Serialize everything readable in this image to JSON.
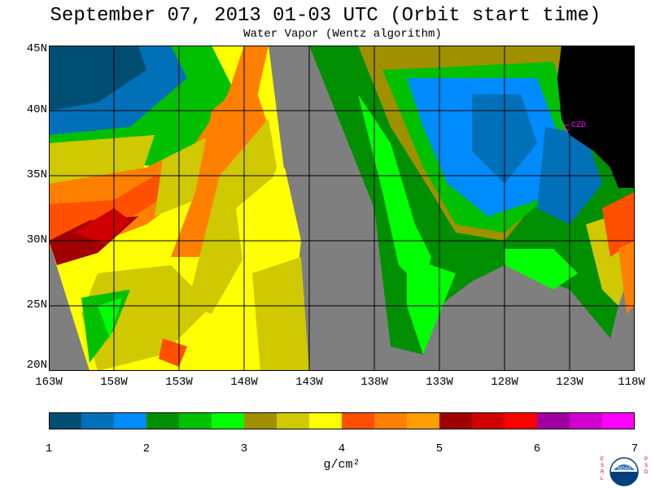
{
  "title": "September 07, 2013  01-03 UTC  (Orbit start time)",
  "subtitle": "Water Vapor (Wentz algorithm)",
  "map": {
    "lat_labels": [
      "45N",
      "40N",
      "35N",
      "30N",
      "25N",
      "20N"
    ],
    "lon_labels": [
      "163W",
      "158W",
      "153W",
      "148W",
      "143W",
      "138W",
      "133W",
      "128W",
      "123W",
      "118W"
    ],
    "station_label": "CZD",
    "no_data_color": "#7f7f7f",
    "land_color": "#000000",
    "grid_color": "#000000",
    "station_color": "#ff00ff"
  },
  "colorbar": {
    "tick_labels": [
      "1",
      "2",
      "3",
      "4",
      "5",
      "6",
      "7"
    ],
    "units": "g/cm²",
    "colors": [
      "#004f73",
      "#0070b8",
      "#008cff",
      "#008f00",
      "#00c000",
      "#00ff00",
      "#a09000",
      "#d0c800",
      "#ffff00",
      "#ff5000",
      "#ff8000",
      "#ffa000",
      "#a00000",
      "#d00000",
      "#ff0000",
      "#a000a0",
      "#d000d0",
      "#ff00ff"
    ]
  },
  "logo": {
    "text_left": "ESRL",
    "text_right": "PSD",
    "emblem_text": "NOAA"
  }
}
